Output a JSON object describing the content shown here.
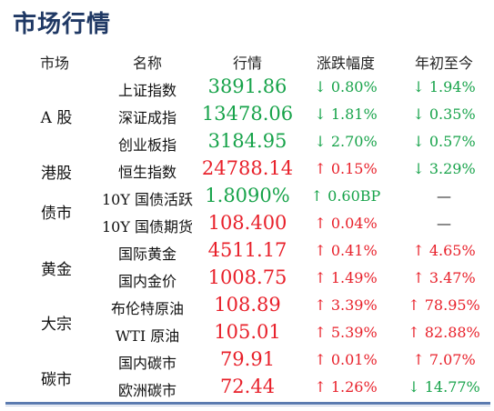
{
  "title": "市场行情",
  "headers": {
    "market": "市场",
    "name": "名称",
    "value": "行情",
    "change": "涨跌幅度",
    "ytd": "年初至今"
  },
  "colors": {
    "up": "#e8202a",
    "down": "#17a34a",
    "title": "#1f3864"
  },
  "groups": [
    {
      "label": "A 股"
    },
    {
      "label": "港股"
    },
    {
      "label": "债市"
    },
    {
      "label": "黄金"
    },
    {
      "label": "大宗"
    },
    {
      "label": "碳市"
    }
  ],
  "rows": [
    {
      "name": "上证指数",
      "value": "3891.86",
      "change": "↓ 0.80%",
      "ytd": "↓ 1.94%",
      "value_dir": "down",
      "change_dir": "down",
      "ytd_dir": "down"
    },
    {
      "name": "深证成指",
      "value": "13478.06",
      "change": "↓ 1.81%",
      "ytd": "↓ 0.35%",
      "value_dir": "down",
      "change_dir": "down",
      "ytd_dir": "down"
    },
    {
      "name": "创业板指",
      "value": "3184.95",
      "change": "↓ 2.70%",
      "ytd": "↓ 0.57%",
      "value_dir": "down",
      "change_dir": "down",
      "ytd_dir": "down"
    },
    {
      "name": "恒生指数",
      "value": "24788.14",
      "change": "↑ 0.15%",
      "ytd": "↓ 3.29%",
      "value_dir": "up",
      "change_dir": "up",
      "ytd_dir": "down"
    },
    {
      "name": "10Y 国债活跃",
      "value": "1.8090%",
      "change": "↑ 0.60BP",
      "ytd": "—",
      "value_dir": "down",
      "change_dir": "down",
      "ytd_dir": "none"
    },
    {
      "name": "10Y 国债期货",
      "value": "108.400",
      "change": "↑ 0.04%",
      "ytd": "—",
      "value_dir": "up",
      "change_dir": "up",
      "ytd_dir": "none"
    },
    {
      "name": "国际黄金",
      "value": "4511.17",
      "change": "↑ 0.41%",
      "ytd": "↑ 4.65%",
      "value_dir": "up",
      "change_dir": "up",
      "ytd_dir": "up"
    },
    {
      "name": "国内金价",
      "value": "1008.75",
      "change": "↑ 1.49%",
      "ytd": "↑ 3.47%",
      "value_dir": "up",
      "change_dir": "up",
      "ytd_dir": "up"
    },
    {
      "name": "布伦特原油",
      "value": "108.89",
      "change": "↑ 3.39%",
      "ytd": "↑ 78.95%",
      "value_dir": "up",
      "change_dir": "up",
      "ytd_dir": "up"
    },
    {
      "name": "WTI 原油",
      "value": "105.01",
      "change": "↑ 5.39%",
      "ytd": "↑ 82.88%",
      "value_dir": "up",
      "change_dir": "up",
      "ytd_dir": "up"
    },
    {
      "name": "国内碳市",
      "value": "79.91",
      "change": "↑ 0.01%",
      "ytd": "↑ 7.07%",
      "value_dir": "up",
      "change_dir": "up",
      "ytd_dir": "up"
    },
    {
      "name": "欧洲碳市",
      "value": "72.44",
      "change": "↑ 1.26%",
      "ytd": "↓ 14.77%",
      "value_dir": "up",
      "change_dir": "up",
      "ytd_dir": "down"
    }
  ]
}
